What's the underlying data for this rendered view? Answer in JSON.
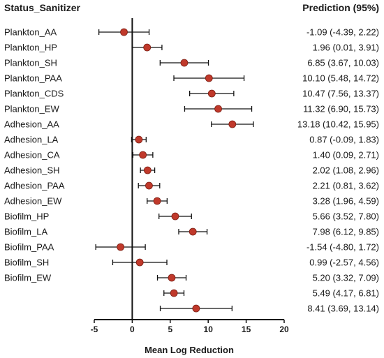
{
  "chart_data": {
    "type": "scatter",
    "subtype": "forest-plot",
    "row_header": "Status_Sanitizer",
    "prediction_header": "Prediction (95%)",
    "xlabel": "Mean Log Reduction",
    "xlim": [
      -5,
      20
    ],
    "xticks": [
      "-5",
      "0",
      "5",
      "10",
      "15",
      "20"
    ],
    "reference_line_x": 0,
    "point_color": "#c0392b",
    "rows": [
      {
        "label": "Plankton_AA",
        "estimate": -1.09,
        "lower": -4.39,
        "upper": 2.22,
        "prediction_text": "-1.09 (-4.39, 2.22)"
      },
      {
        "label": "Plankton_HP",
        "estimate": 1.96,
        "lower": 0.01,
        "upper": 3.91,
        "prediction_text": "1.96 (0.01, 3.91)"
      },
      {
        "label": "Plankton_SH",
        "estimate": 6.85,
        "lower": 3.67,
        "upper": 10.03,
        "prediction_text": "6.85 (3.67, 10.03)"
      },
      {
        "label": "Plankton_PAA",
        "estimate": 10.1,
        "lower": 5.48,
        "upper": 14.72,
        "prediction_text": "10.10 (5.48, 14.72)"
      },
      {
        "label": "Plankton_CDS",
        "estimate": 10.47,
        "lower": 7.56,
        "upper": 13.37,
        "prediction_text": "10.47 (7.56, 13.37)"
      },
      {
        "label": "Plankton_EW",
        "estimate": 11.32,
        "lower": 6.9,
        "upper": 15.73,
        "prediction_text": "11.32 (6.90, 15.73)"
      },
      {
        "label": "Adhesion_AA",
        "estimate": 13.18,
        "lower": 10.42,
        "upper": 15.95,
        "prediction_text": "13.18 (10.42, 15.95)"
      },
      {
        "label": "Adhesion_LA",
        "estimate": 0.87,
        "lower": -0.09,
        "upper": 1.83,
        "prediction_text": "0.87 (-0.09, 1.83)"
      },
      {
        "label": "Adhesion_CA",
        "estimate": 1.4,
        "lower": 0.09,
        "upper": 2.71,
        "prediction_text": "1.40 (0.09, 2.71)"
      },
      {
        "label": "Adhesion_SH",
        "estimate": 2.02,
        "lower": 1.08,
        "upper": 2.96,
        "prediction_text": "2.02 (1.08, 2.96)"
      },
      {
        "label": "Adhesion_PAA",
        "estimate": 2.21,
        "lower": 0.81,
        "upper": 3.62,
        "prediction_text": "2.21 (0.81, 3.62)"
      },
      {
        "label": "Adhesion_EW",
        "estimate": 3.28,
        "lower": 1.96,
        "upper": 4.59,
        "prediction_text": "3.28 (1.96, 4.59)"
      },
      {
        "label": "Biofilm_HP",
        "estimate": 5.66,
        "lower": 3.52,
        "upper": 7.8,
        "prediction_text": "5.66 (3.52, 7.80)"
      },
      {
        "label": "Biofilm_LA",
        "estimate": 7.98,
        "lower": 6.12,
        "upper": 9.85,
        "prediction_text": "7.98 (6.12, 9.85)"
      },
      {
        "label": "Biofilm_PAA",
        "estimate": -1.54,
        "lower": -4.8,
        "upper": 1.72,
        "prediction_text": "-1.54 (-4.80, 1.72)"
      },
      {
        "label": "Biofilm_SH",
        "estimate": 0.99,
        "lower": -2.57,
        "upper": 4.56,
        "prediction_text": "0.99 (-2.57, 4.56)"
      },
      {
        "label": "Biofilm_EW",
        "estimate": 5.2,
        "lower": 3.32,
        "upper": 7.09,
        "prediction_text": "5.20 (3.32, 7.09)"
      },
      {
        "label": "",
        "estimate": 5.49,
        "lower": 4.17,
        "upper": 6.81,
        "prediction_text": "5.49 (4.17, 6.81)"
      },
      {
        "label": "",
        "estimate": 8.41,
        "lower": 3.69,
        "upper": 13.14,
        "prediction_text": "8.41 (3.69, 13.14)"
      }
    ]
  }
}
